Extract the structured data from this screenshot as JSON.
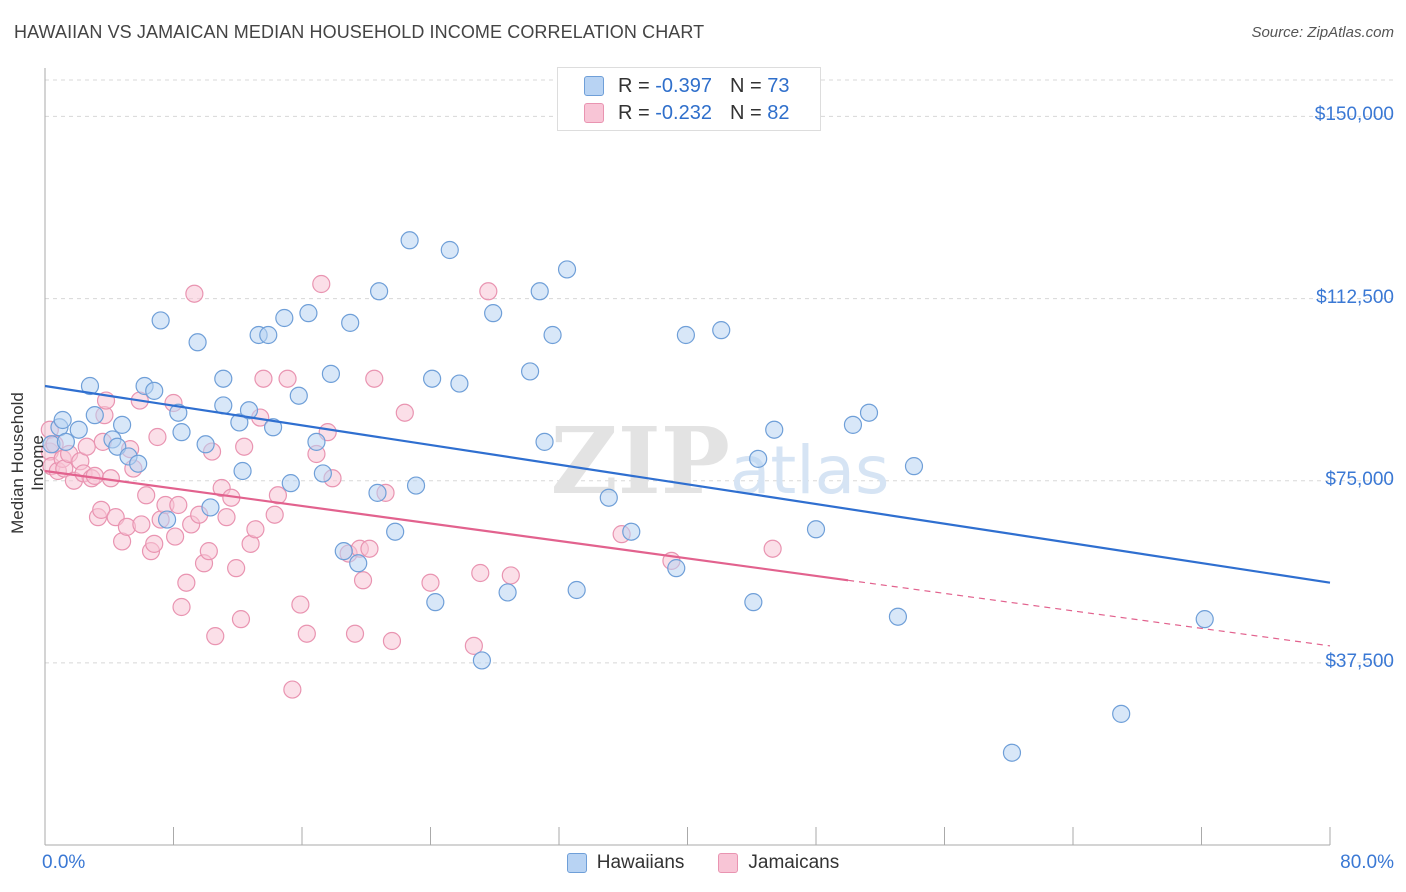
{
  "title": "HAWAIIAN VS JAMAICAN MEDIAN HOUSEHOLD INCOME CORRELATION CHART",
  "source": "Source: ZipAtlas.com",
  "watermark": "ZIPatlas",
  "legend": {
    "rows": [
      {
        "r_label": "R = ",
        "r_value": "-0.397",
        "n_label": "N = ",
        "n_value": "73"
      },
      {
        "r_label": "R = ",
        "r_value": "-0.232",
        "n_label": "N = ",
        "n_value": "82"
      }
    ]
  },
  "colors": {
    "hawaiians_fill": "#b8d3f3",
    "hawaiians_stroke": "#6f9fd8",
    "hawaiians_line": "#2f6fd0",
    "jamaicans_fill": "#f8c5d6",
    "jamaicans_stroke": "#e994b1",
    "jamaicans_line": "#e2628e",
    "axis_text": "#3a78d4",
    "grid": "#d8d8d8"
  },
  "chart_data": {
    "type": "scatter",
    "title": "HAWAIIAN VS JAMAICAN MEDIAN HOUSEHOLD INCOME CORRELATION CHART",
    "xlabel": "",
    "ylabel": "Median Household Income",
    "xlim": [
      0,
      80
    ],
    "ylim": [
      0,
      157500
    ],
    "x_tick_labels": [
      "0.0%",
      "80.0%"
    ],
    "y_ticks": [
      37500,
      75000,
      112500,
      150000
    ],
    "y_tick_labels": [
      "$37,500",
      "$75,000",
      "$112,500",
      "$150,000"
    ],
    "grid": true,
    "legend_position": "top-center",
    "series": [
      {
        "name": "Hawaiians",
        "r": -0.397,
        "n": 73,
        "trend": {
          "x": [
            0,
            80
          ],
          "y": [
            94500,
            54000
          ],
          "dashed_from": null
        },
        "points": [
          [
            0.4,
            82500
          ],
          [
            0.9,
            86000
          ],
          [
            1.1,
            87500
          ],
          [
            1.3,
            83000
          ],
          [
            2.1,
            85500
          ],
          [
            2.8,
            94500
          ],
          [
            3.1,
            88500
          ],
          [
            4.2,
            83500
          ],
          [
            4.5,
            82000
          ],
          [
            4.8,
            86500
          ],
          [
            5.2,
            80000
          ],
          [
            5.8,
            78500
          ],
          [
            6.2,
            94500
          ],
          [
            6.8,
            93500
          ],
          [
            7.2,
            108000
          ],
          [
            7.6,
            67000
          ],
          [
            8.3,
            89000
          ],
          [
            8.5,
            85000
          ],
          [
            9.5,
            103500
          ],
          [
            10.0,
            82500
          ],
          [
            10.3,
            69500
          ],
          [
            11.1,
            90500
          ],
          [
            11.1,
            96000
          ],
          [
            12.1,
            87000
          ],
          [
            12.3,
            77000
          ],
          [
            12.7,
            89500
          ],
          [
            13.3,
            105000
          ],
          [
            13.9,
            105000
          ],
          [
            14.2,
            86000
          ],
          [
            14.9,
            108500
          ],
          [
            15.3,
            74500
          ],
          [
            15.8,
            92500
          ],
          [
            16.4,
            109500
          ],
          [
            16.9,
            83000
          ],
          [
            17.3,
            76500
          ],
          [
            17.8,
            97000
          ],
          [
            18.6,
            60500
          ],
          [
            19.0,
            107500
          ],
          [
            19.5,
            58000
          ],
          [
            20.7,
            72500
          ],
          [
            20.8,
            114000
          ],
          [
            21.8,
            64500
          ],
          [
            22.7,
            124500
          ],
          [
            23.1,
            74000
          ],
          [
            24.1,
            96000
          ],
          [
            24.3,
            50000
          ],
          [
            25.2,
            122500
          ],
          [
            25.8,
            95000
          ],
          [
            27.2,
            38000
          ],
          [
            27.9,
            109500
          ],
          [
            28.8,
            52000
          ],
          [
            30.2,
            97500
          ],
          [
            30.8,
            114000
          ],
          [
            31.1,
            83000
          ],
          [
            31.6,
            105000
          ],
          [
            32.5,
            118500
          ],
          [
            33.1,
            52500
          ],
          [
            35.1,
            71500
          ],
          [
            36.5,
            64500
          ],
          [
            39.3,
            57000
          ],
          [
            39.9,
            105000
          ],
          [
            42.1,
            106000
          ],
          [
            44.1,
            50000
          ],
          [
            44.4,
            79500
          ],
          [
            45.4,
            85500
          ],
          [
            48.0,
            65000
          ],
          [
            50.3,
            86500
          ],
          [
            51.3,
            89000
          ],
          [
            53.1,
            47000
          ],
          [
            54.1,
            78000
          ],
          [
            60.2,
            19000
          ],
          [
            67.0,
            27000
          ],
          [
            72.2,
            46500
          ]
        ]
      },
      {
        "name": "Jamaicans",
        "r": -0.232,
        "n": 82,
        "trend": {
          "x": [
            0,
            80
          ],
          "y": [
            77000,
            41000
          ],
          "dashed_from": 50
        },
        "points": [
          [
            0.3,
            85500
          ],
          [
            0.3,
            81000
          ],
          [
            0.4,
            78000
          ],
          [
            0.6,
            82500
          ],
          [
            0.8,
            77000
          ],
          [
            1.1,
            79500
          ],
          [
            1.2,
            77500
          ],
          [
            1.5,
            80500
          ],
          [
            1.8,
            75000
          ],
          [
            2.2,
            79000
          ],
          [
            2.4,
            76500
          ],
          [
            2.6,
            82000
          ],
          [
            2.9,
            75500
          ],
          [
            3.1,
            76000
          ],
          [
            3.3,
            67500
          ],
          [
            3.5,
            69000
          ],
          [
            3.6,
            83000
          ],
          [
            3.7,
            88500
          ],
          [
            3.8,
            91500
          ],
          [
            4.1,
            75500
          ],
          [
            4.4,
            67500
          ],
          [
            4.8,
            62500
          ],
          [
            5.1,
            65500
          ],
          [
            5.3,
            81500
          ],
          [
            5.5,
            77500
          ],
          [
            5.9,
            91500
          ],
          [
            6.0,
            66000
          ],
          [
            6.3,
            72000
          ],
          [
            6.6,
            60500
          ],
          [
            6.8,
            62000
          ],
          [
            7.0,
            84000
          ],
          [
            7.2,
            67000
          ],
          [
            7.5,
            70000
          ],
          [
            8.0,
            91000
          ],
          [
            8.1,
            63500
          ],
          [
            8.3,
            70000
          ],
          [
            8.5,
            49000
          ],
          [
            8.8,
            54000
          ],
          [
            9.1,
            66000
          ],
          [
            9.3,
            113500
          ],
          [
            9.6,
            68000
          ],
          [
            9.9,
            58000
          ],
          [
            10.2,
            60500
          ],
          [
            10.4,
            81000
          ],
          [
            10.6,
            43000
          ],
          [
            11.0,
            73500
          ],
          [
            11.3,
            67500
          ],
          [
            11.6,
            71500
          ],
          [
            11.9,
            57000
          ],
          [
            12.2,
            46500
          ],
          [
            12.4,
            82000
          ],
          [
            12.8,
            62000
          ],
          [
            13.1,
            65000
          ],
          [
            13.4,
            88000
          ],
          [
            13.6,
            96000
          ],
          [
            14.3,
            68000
          ],
          [
            14.5,
            72000
          ],
          [
            15.1,
            96000
          ],
          [
            15.4,
            32000
          ],
          [
            15.9,
            49500
          ],
          [
            16.3,
            43500
          ],
          [
            16.9,
            80500
          ],
          [
            17.2,
            115500
          ],
          [
            17.6,
            85000
          ],
          [
            17.9,
            75500
          ],
          [
            18.9,
            60000
          ],
          [
            19.3,
            43500
          ],
          [
            19.6,
            61000
          ],
          [
            19.8,
            54500
          ],
          [
            20.2,
            61000
          ],
          [
            20.5,
            96000
          ],
          [
            21.2,
            72500
          ],
          [
            21.6,
            42000
          ],
          [
            22.4,
            89000
          ],
          [
            24.0,
            54000
          ],
          [
            26.7,
            41000
          ],
          [
            27.1,
            56000
          ],
          [
            27.6,
            114000
          ],
          [
            29.0,
            55500
          ],
          [
            35.9,
            64000
          ],
          [
            39.0,
            58500
          ],
          [
            45.3,
            61000
          ]
        ]
      }
    ]
  }
}
